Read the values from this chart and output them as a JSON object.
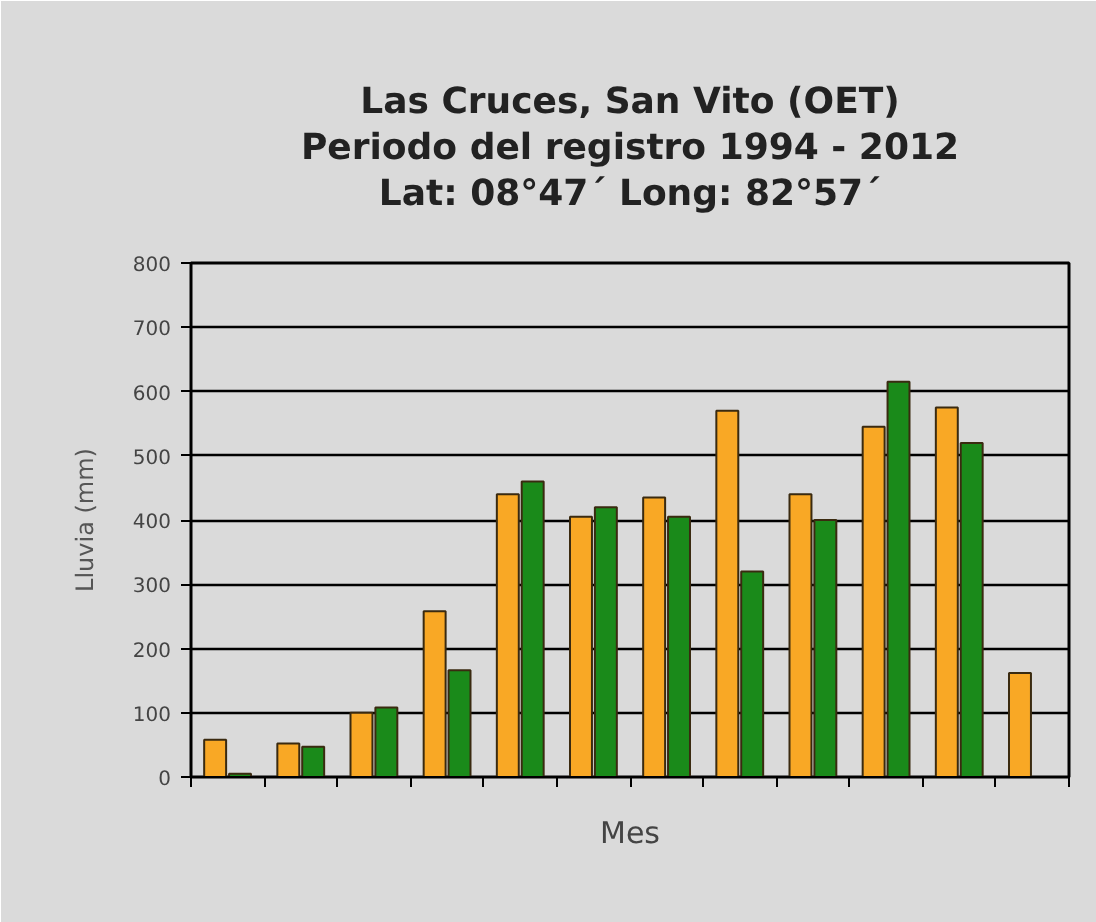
{
  "chart_data": {
    "type": "bar",
    "title": "Las Cruces, San Vito (OET)\nPeriodo del registro 1994 - 2012\nLat: 08°47´ Long: 82°57´",
    "xlabel": "Mes",
    "ylabel": "Lluvia (mm)",
    "categories": [
      null,
      null,
      null,
      null,
      null,
      null,
      null,
      null,
      null,
      null,
      null,
      null
    ],
    "series": [
      {
        "color": "#f9a825",
        "values": [
          58,
          52,
          100,
          258,
          440,
          405,
          435,
          570,
          440,
          545,
          575,
          162
        ]
      },
      {
        "color": "#1a8a1a",
        "values": [
          5,
          47,
          108,
          166,
          460,
          420,
          405,
          320,
          400,
          615,
          520,
          null
        ]
      }
    ],
    "ylim": [
      0,
      800
    ],
    "yticks": [
      0,
      100,
      200,
      300,
      400,
      500,
      600,
      700,
      800
    ],
    "grid": "y",
    "tick_labels": "y"
  }
}
